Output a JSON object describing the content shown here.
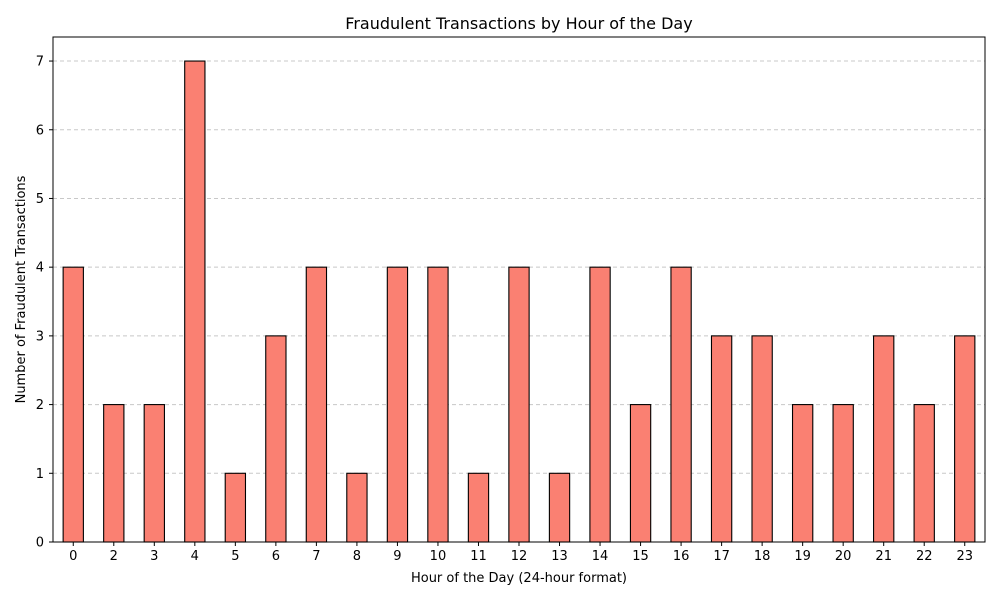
{
  "chart_data": {
    "type": "bar",
    "title": "Fraudulent Transactions by Hour of the Day",
    "xlabel": "Hour of the Day (24-hour format)",
    "ylabel": "Number of Fraudulent Transactions",
    "categories": [
      "0",
      "2",
      "3",
      "4",
      "5",
      "6",
      "7",
      "8",
      "9",
      "10",
      "11",
      "12",
      "13",
      "14",
      "15",
      "16",
      "17",
      "18",
      "19",
      "20",
      "21",
      "22",
      "23"
    ],
    "values": [
      4,
      2,
      2,
      7,
      1,
      3,
      4,
      1,
      4,
      4,
      1,
      4,
      1,
      4,
      2,
      4,
      3,
      3,
      2,
      2,
      3,
      2,
      3
    ],
    "ylim": [
      0,
      7.35
    ],
    "yticks": [
      0,
      1,
      2,
      3,
      4,
      5,
      6,
      7
    ],
    "grid": "y-dashed",
    "bar_color": "#fa8072",
    "edge_color": "#000000"
  }
}
